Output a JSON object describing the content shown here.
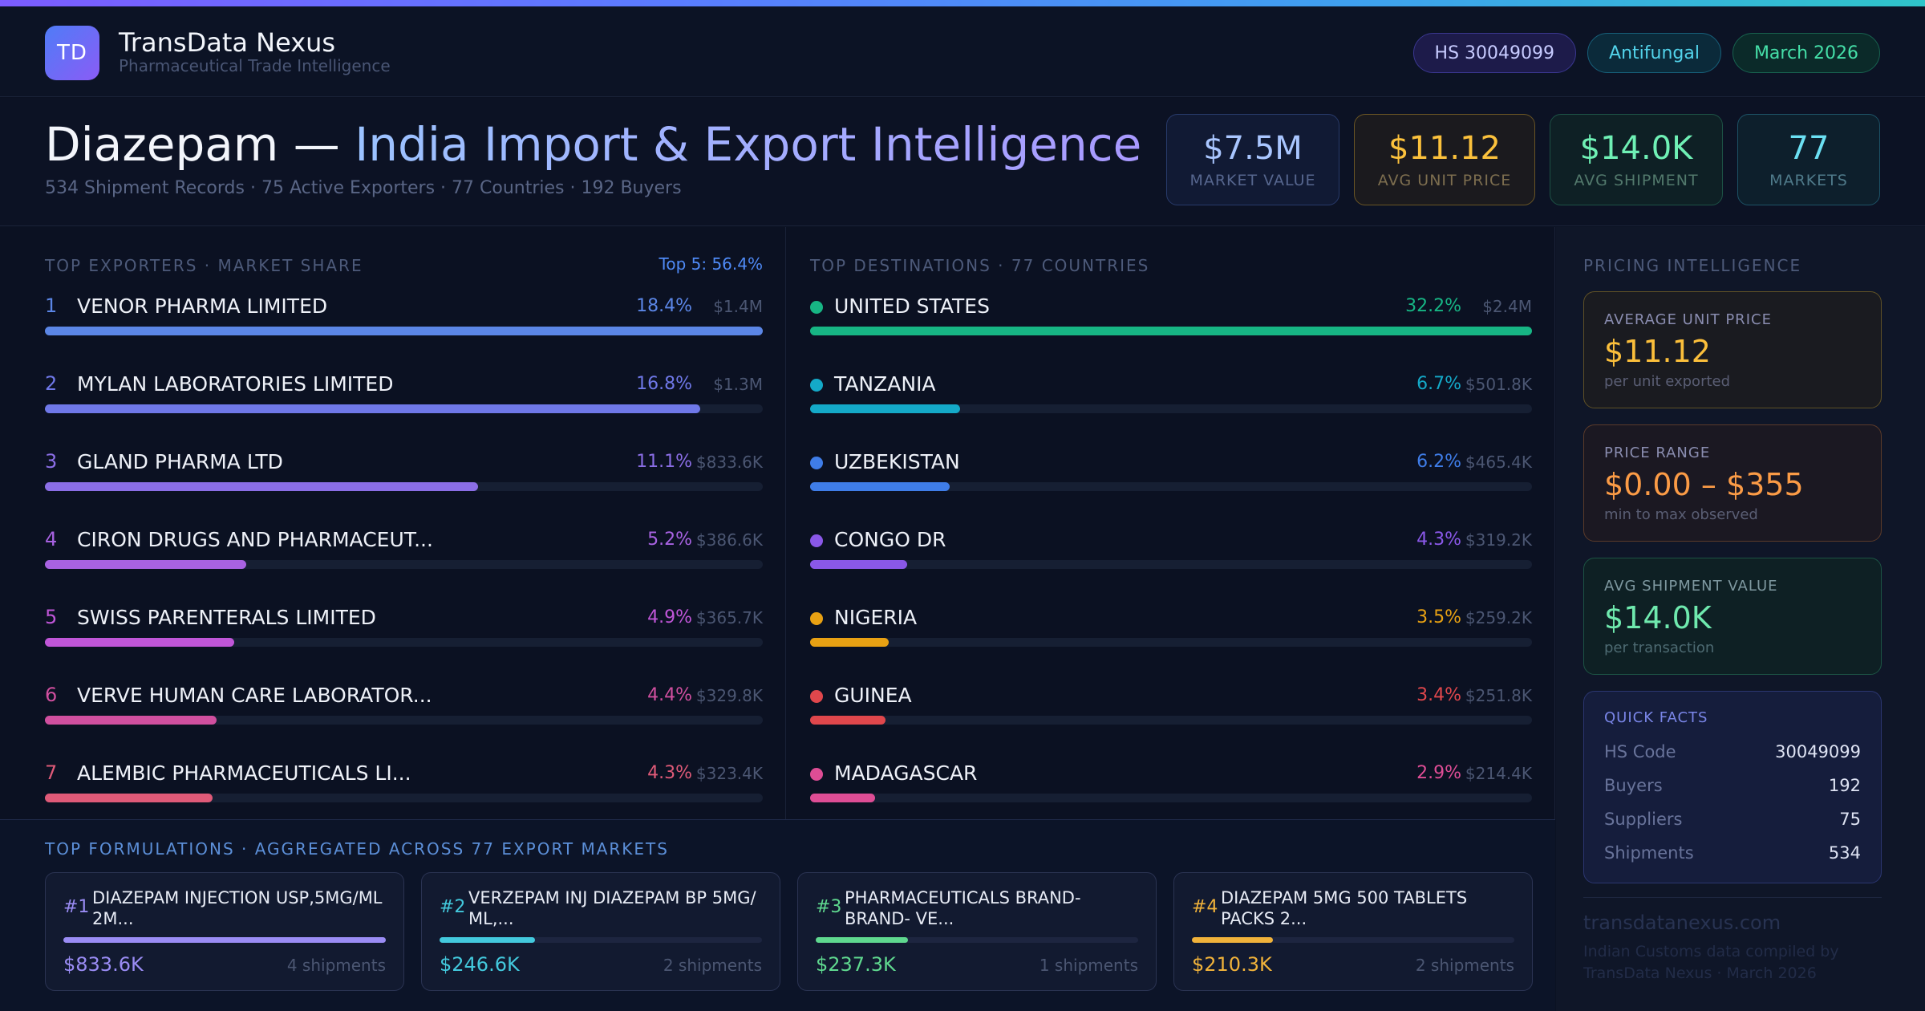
{
  "header": {
    "logo_text": "TD",
    "brand_name": "TransData Nexus",
    "brand_tagline": "Pharmaceutical Trade Intelligence",
    "pills": {
      "hs": "HS 30049099",
      "category": "Antifungal",
      "date": "March 2026"
    }
  },
  "title": {
    "main_part": "Diazepam — ",
    "highlight_part": "India Import & Export Intelligence",
    "subtitle": "534 Shipment Records · 75 Active Exporters · 77 Countries · 192 Buyers"
  },
  "kpis": [
    {
      "value": "$7.5M",
      "label": "MARKET VALUE"
    },
    {
      "value": "$11.12",
      "label": "AVG UNIT PRICE"
    },
    {
      "value": "$14.0K",
      "label": "AVG SHIPMENT"
    },
    {
      "value": "77",
      "label": "MARKETS"
    }
  ],
  "exporters": {
    "title": "TOP EXPORTERS · MARKET SHARE",
    "badge": "Top 5: 56.4%",
    "items": [
      {
        "rank": "1",
        "name": "VENOR PHARMA LIMITED",
        "pct": "18.4%",
        "amount": "$1.4M",
        "share": 1.0,
        "color": "#5b86e6"
      },
      {
        "rank": "2",
        "name": "MYLAN LABORATORIES LIMITED",
        "pct": "16.8%",
        "amount": "$1.3M",
        "share": 0.913,
        "color": "#6f78e8"
      },
      {
        "rank": "3",
        "name": "GLAND PHARMA LTD",
        "pct": "11.1%",
        "amount": "$833.6K",
        "share": 0.603,
        "color": "#8b6ee6"
      },
      {
        "rank": "4",
        "name": "CIRON DRUGS AND PHARMACEUT...",
        "pct": "5.2%",
        "amount": "$386.6K",
        "share": 0.28,
        "color": "#a862e2"
      },
      {
        "rank": "5",
        "name": "SWISS PARENTERALS LIMITED",
        "pct": "4.9%",
        "amount": "$365.7K",
        "share": 0.264,
        "color": "#c056d8"
      },
      {
        "rank": "6",
        "name": "VERVE HUMAN CARE LABORATOR...",
        "pct": "4.4%",
        "amount": "$329.8K",
        "share": 0.239,
        "color": "#d04f9f"
      },
      {
        "rank": "7",
        "name": "ALEMBIC PHARMACEUTICALS LI...",
        "pct": "4.3%",
        "amount": "$323.4K",
        "share": 0.234,
        "color": "#df5a78"
      }
    ]
  },
  "destinations": {
    "title": "TOP DESTINATIONS · 77 COUNTRIES",
    "items": [
      {
        "name": "UNITED STATES",
        "pct": "32.2%",
        "amount": "$2.4M",
        "share": 1.0,
        "color": "#17b584"
      },
      {
        "name": "TANZANIA",
        "pct": "6.7%",
        "amount": "$501.8K",
        "share": 0.208,
        "color": "#14a9c8"
      },
      {
        "name": "UZBEKISTAN",
        "pct": "6.2%",
        "amount": "$465.4K",
        "share": 0.193,
        "color": "#3f7de8"
      },
      {
        "name": "CONGO DR",
        "pct": "4.3%",
        "amount": "$319.2K",
        "share": 0.134,
        "color": "#8a58e8"
      },
      {
        "name": "NIGERIA",
        "pct": "3.5%",
        "amount": "$259.2K",
        "share": 0.109,
        "color": "#e8a113"
      },
      {
        "name": "GUINEA",
        "pct": "3.4%",
        "amount": "$251.8K",
        "share": 0.104,
        "color": "#e0474c"
      },
      {
        "name": "MADAGASCAR",
        "pct": "2.9%",
        "amount": "$214.4K",
        "share": 0.09,
        "color": "#de4d95"
      }
    ]
  },
  "formulations": {
    "title": "TOP FORMULATIONS · AGGREGATED ACROSS 77 EXPORT MARKETS",
    "items": [
      {
        "rank": "#1",
        "name": "DIAZEPAM INJECTION USP,5MG/ML 2M...",
        "value": "$833.6K",
        "shipments": "4 shipments",
        "share": 1.0,
        "color": "#9a8cf4"
      },
      {
        "rank": "#2",
        "name": "VERZEPAM INJ DIAZEPAM BP 5MG/ ML,...",
        "value": "$246.6K",
        "shipments": "2 shipments",
        "share": 0.296,
        "color": "#43c9dd"
      },
      {
        "rank": "#3",
        "name": "PHARMACEUTICALS BRAND- BRAND- VE...",
        "value": "$237.3K",
        "shipments": "1 shipments",
        "share": 0.285,
        "color": "#5fd88f"
      },
      {
        "rank": "#4",
        "name": "DIAZEPAM 5MG 500 TABLETS PACKS 2...",
        "value": "$210.3K",
        "shipments": "2 shipments",
        "share": 0.252,
        "color": "#f0b23a"
      }
    ]
  },
  "pricing": {
    "title": "PRICING INTELLIGENCE",
    "cards": [
      {
        "label": "AVERAGE UNIT PRICE",
        "value": "$11.12",
        "sub": "per unit exported"
      },
      {
        "label": "PRICE RANGE",
        "value": "$0.00 – $355",
        "sub": "min to max observed"
      },
      {
        "label": "AVG SHIPMENT VALUE",
        "value": "$14.0K",
        "sub": "per transaction"
      }
    ],
    "quick_facts": {
      "title": "QUICK FACTS",
      "rows": [
        {
          "key": "HS Code",
          "value": "30049099"
        },
        {
          "key": "Buyers",
          "value": "192"
        },
        {
          "key": "Suppliers",
          "value": "75"
        },
        {
          "key": "Shipments",
          "value": "534"
        }
      ]
    },
    "footer_site": "transdatanexus.com",
    "footer_note": "Indian Customs data compiled by TransData Nexus · March 2026"
  }
}
